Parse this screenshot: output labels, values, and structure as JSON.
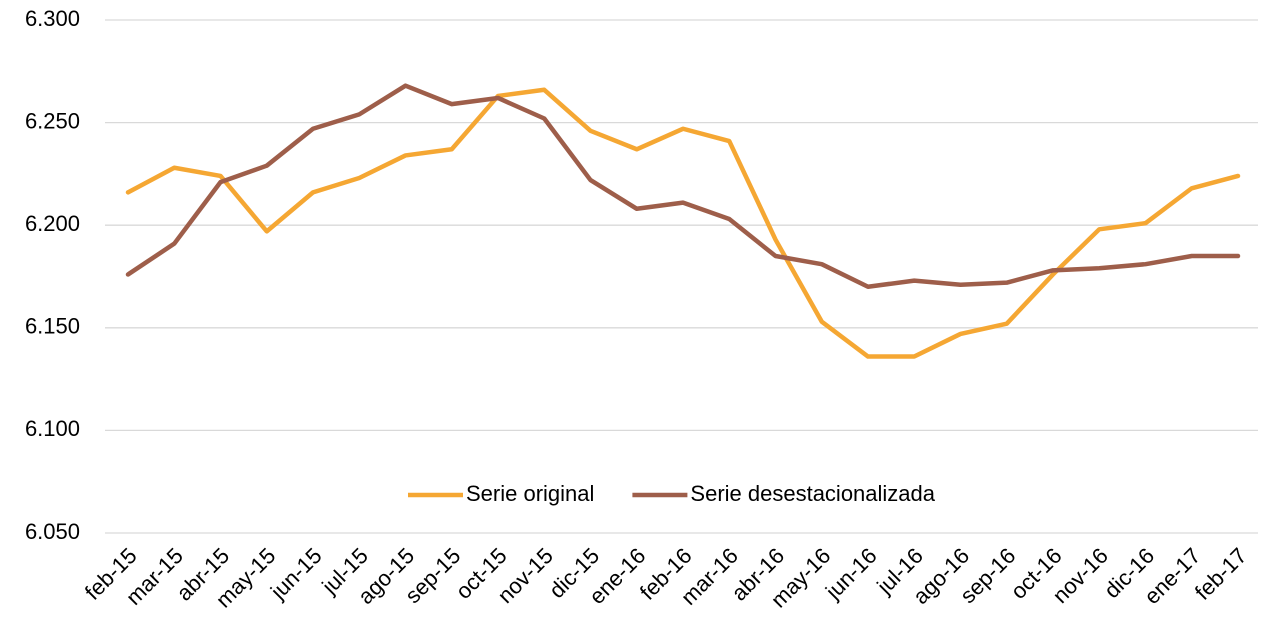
{
  "chart_data": {
    "type": "line",
    "categories": [
      "feb-15",
      "mar-15",
      "abr-15",
      "may-15",
      "jun-15",
      "jul-15",
      "ago-15",
      "sep-15",
      "oct-15",
      "nov-15",
      "dic-15",
      "ene-16",
      "feb-16",
      "mar-16",
      "abr-16",
      "may-16",
      "jun-16",
      "jul-16",
      "ago-16",
      "sep-16",
      "oct-16",
      "nov-16",
      "dic-16",
      "ene-17",
      "feb-17"
    ],
    "series": [
      {
        "name": "Serie original",
        "color": "#f5a733",
        "values": [
          6216,
          6228,
          6224,
          6197,
          6216,
          6223,
          6234,
          6237,
          6263,
          6266,
          6246,
          6237,
          6247,
          6241,
          6193,
          6153,
          6136,
          6136,
          6147,
          6152,
          6176,
          6198,
          6201,
          6218,
          6224
        ]
      },
      {
        "name": "Serie desestacionalizada",
        "color": "#9e5e4a",
        "values": [
          6176,
          6191,
          6221,
          6229,
          6247,
          6254,
          6268,
          6259,
          6262,
          6252,
          6222,
          6208,
          6211,
          6203,
          6185,
          6181,
          6170,
          6173,
          6171,
          6172,
          6178,
          6179,
          6181,
          6185,
          6185
        ]
      }
    ],
    "ylim": [
      6050,
      6300
    ],
    "yticks": [
      {
        "value": 6050,
        "label": "6.050"
      },
      {
        "value": 6100,
        "label": "6.100"
      },
      {
        "value": 6150,
        "label": "6.150"
      },
      {
        "value": 6200,
        "label": "6.200"
      },
      {
        "value": 6250,
        "label": "6.250"
      },
      {
        "value": 6300,
        "label": "6.300"
      }
    ],
    "grid": true,
    "legend": "bottom"
  }
}
